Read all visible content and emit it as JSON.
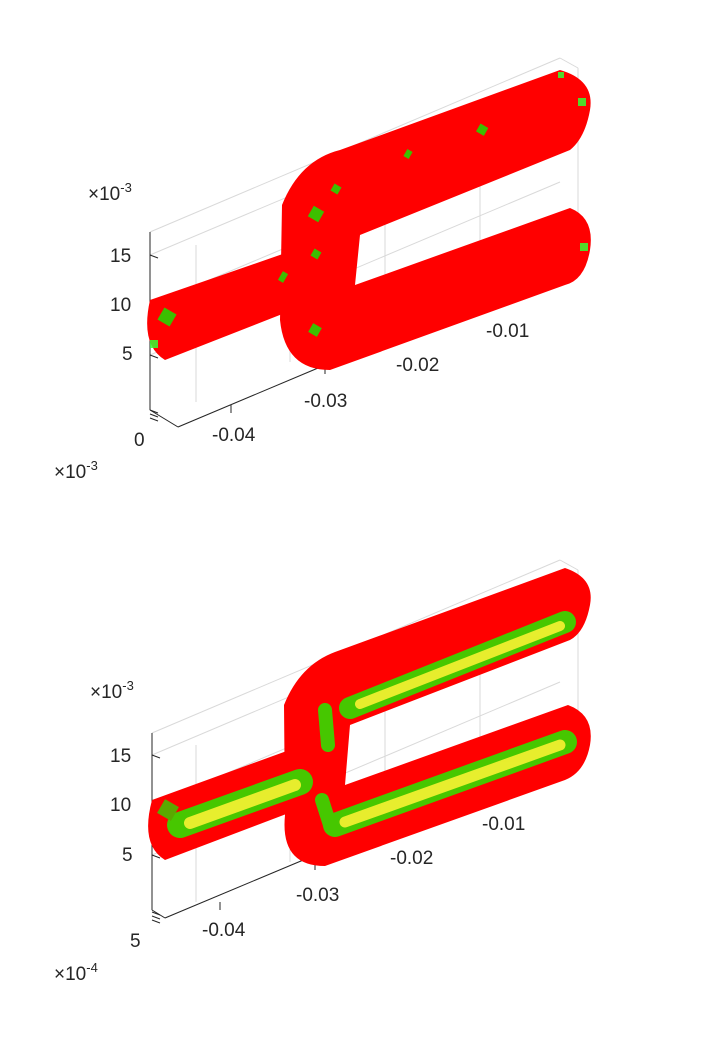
{
  "chart_data": [
    {
      "type": "scatter",
      "title": "",
      "xlabel": "",
      "ylabel": "",
      "zlabel": "",
      "x_ticks": [
        "-0.04",
        "-0.03",
        "-0.02",
        "-0.01"
      ],
      "x_tick_values": [
        -0.04,
        -0.03,
        -0.02,
        -0.01
      ],
      "z_ticks": [
        "5",
        "10",
        "15"
      ],
      "z_tick_values": [
        5,
        10,
        15
      ],
      "z_exponent_base": "10",
      "z_exponent_power": "-3",
      "y_ticks": [
        "0"
      ],
      "y_exponent_base": "10",
      "y_exponent_power": "-3",
      "grid": true,
      "colors": {
        "outer": "#ff0000",
        "inner": "#00ff00",
        "core": "#ffff00"
      },
      "fill_distribution": {
        "red": 0.97,
        "green": 0.03,
        "yellow": 0.0
      }
    },
    {
      "type": "scatter",
      "title": "",
      "xlabel": "",
      "ylabel": "",
      "zlabel": "",
      "x_ticks": [
        "-0.04",
        "-0.03",
        "-0.02",
        "-0.01"
      ],
      "x_tick_values": [
        -0.04,
        -0.03,
        -0.02,
        -0.01
      ],
      "z_ticks": [
        "5",
        "10",
        "15"
      ],
      "z_tick_values": [
        5,
        10,
        15
      ],
      "z_exponent_base": "10",
      "z_exponent_power": "-3",
      "y_ticks": [
        "5"
      ],
      "y_exponent_base": "10",
      "y_exponent_power": "-4",
      "grid": true,
      "colors": {
        "outer": "#ff0000",
        "inner": "#00ff00",
        "core": "#ffff00"
      },
      "fill_distribution": {
        "red": 0.82,
        "green": 0.06,
        "yellow": 0.12
      }
    }
  ]
}
